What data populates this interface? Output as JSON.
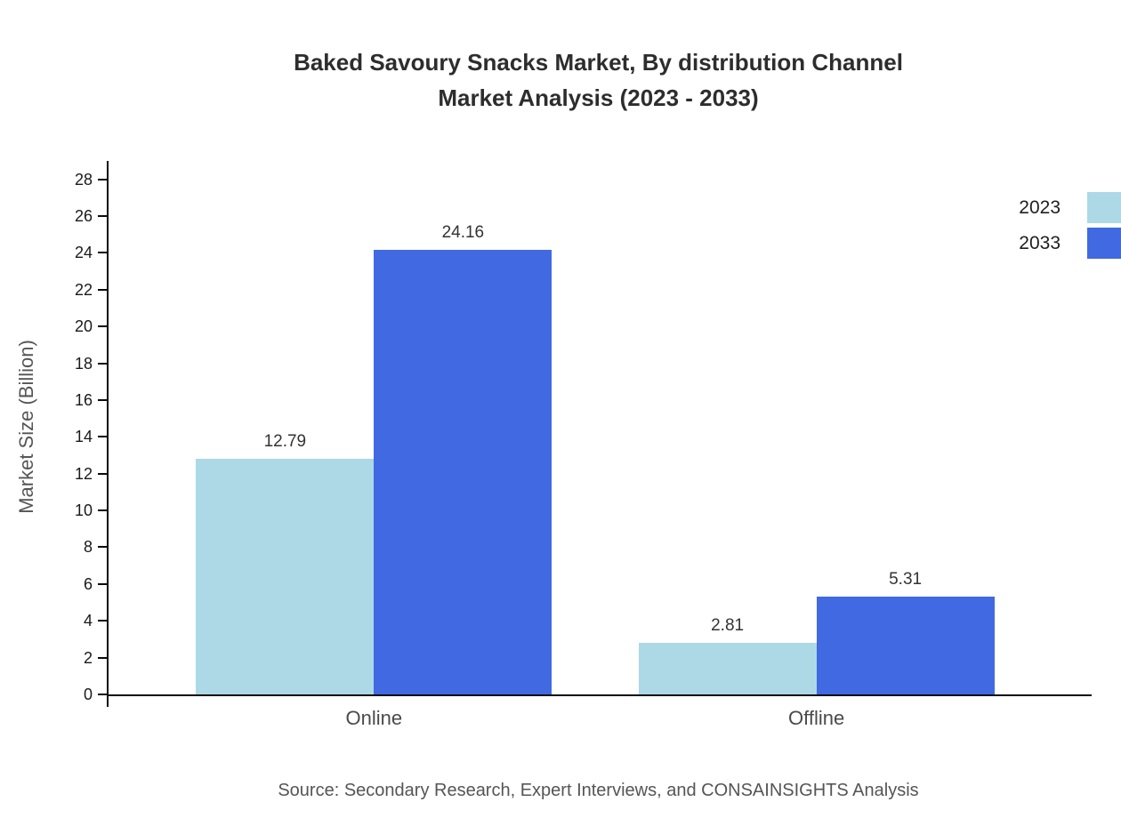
{
  "title": {
    "line1": "Baked Savoury Snacks Market, By distribution Channel",
    "line2": "Market Analysis (2023 - 2033)"
  },
  "footer": {
    "source": "Source: Secondary Research, Expert Interviews, and CONSAINSIGHTS Analysis"
  },
  "chart_data": {
    "type": "bar",
    "title": "Baked Savoury Snacks Market, By distribution Channel Market Analysis (2023 - 2033)",
    "categories": [
      "Online",
      "Offline"
    ],
    "series": [
      {
        "name": "2023",
        "color": "#ADD8E6",
        "values": [
          12.79,
          2.81
        ]
      },
      {
        "name": "2033",
        "color": "#4169E1",
        "values": [
          24.16,
          5.31
        ]
      }
    ],
    "xlabel": "",
    "ylabel": "Market Size (Billion)",
    "ylim": [
      0,
      28
    ],
    "ytick_step": 2,
    "grid": false,
    "legend_position": "top-right",
    "value_labels": true
  }
}
